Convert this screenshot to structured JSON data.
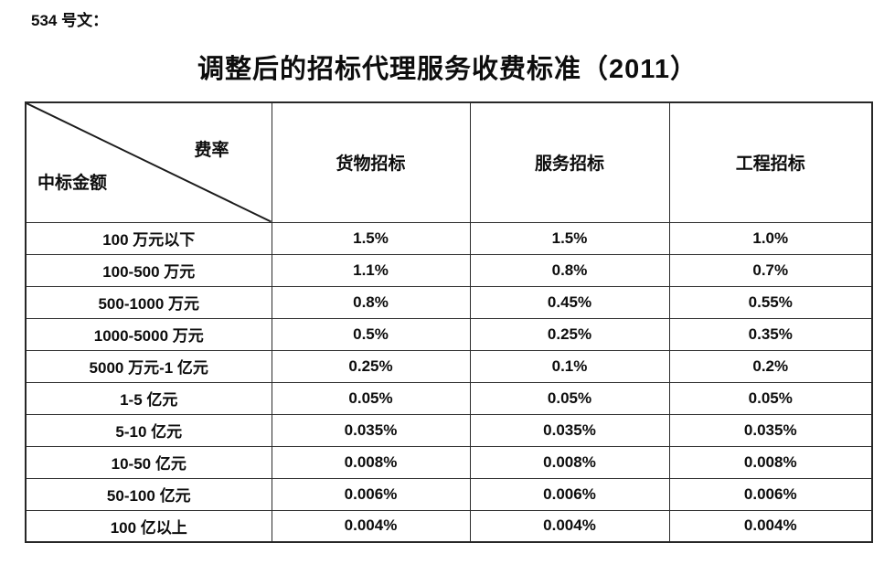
{
  "page": {
    "doc_ref": "534 号文：",
    "title": "调整后的招标代理服务收费标准（2011）"
  },
  "colors": {
    "ink": "#0d0d0d",
    "table_border": "#2b2b2b",
    "background": "#ffffff"
  },
  "table": {
    "corner": {
      "top_right_label": "费率",
      "bottom_left_label": "中标金额"
    },
    "columns": [
      "货物招标",
      "服务招标",
      "工程招标"
    ],
    "rows": [
      {
        "amount": "100 万元以下",
        "goods": "1.5%",
        "service": "1.5%",
        "engineering": "1.0%"
      },
      {
        "amount": "100-500 万元",
        "goods": "1.1%",
        "service": "0.8%",
        "engineering": "0.7%"
      },
      {
        "amount": "500-1000 万元",
        "goods": "0.8%",
        "service": "0.45%",
        "engineering": "0.55%"
      },
      {
        "amount": "1000-5000 万元",
        "goods": "0.5%",
        "service": "0.25%",
        "engineering": "0.35%"
      },
      {
        "amount": "5000 万元-1 亿元",
        "goods": "0.25%",
        "service": "0.1%",
        "engineering": "0.2%"
      },
      {
        "amount": "1-5 亿元",
        "goods": "0.05%",
        "service": "0.05%",
        "engineering": "0.05%"
      },
      {
        "amount": "5-10 亿元",
        "goods": "0.035%",
        "service": "0.035%",
        "engineering": "0.035%"
      },
      {
        "amount": "10-50 亿元",
        "goods": "0.008%",
        "service": "0.008%",
        "engineering": "0.008%"
      },
      {
        "amount": "50-100 亿元",
        "goods": "0.006%",
        "service": "0.006%",
        "engineering": "0.006%"
      },
      {
        "amount": "100 亿以上",
        "goods": "0.004%",
        "service": "0.004%",
        "engineering": "0.004%"
      }
    ]
  }
}
